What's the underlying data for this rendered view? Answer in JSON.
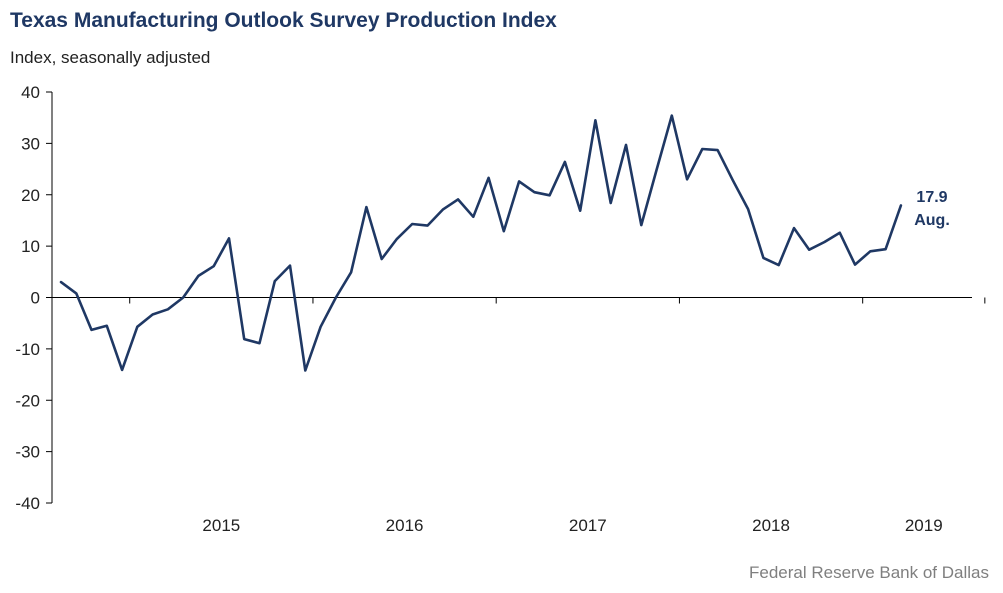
{
  "title": "Texas Manufacturing Outlook Survey Production Index",
  "subtitle": "Index, seasonally adjusted",
  "source": "Federal Reserve Bank of Dallas",
  "colors": {
    "line": "#1f3864",
    "title": "#1f3864",
    "axis": "#000000",
    "source": "#7f7f7f"
  },
  "chart_data": {
    "type": "line",
    "title": "Texas Manufacturing Outlook Survey Production Index",
    "ylabel": "Index, seasonally adjusted",
    "xlabel": "",
    "ylim": [
      -40,
      40
    ],
    "yticks": [
      40,
      30,
      20,
      10,
      0,
      -10,
      -20,
      -30,
      -40
    ],
    "x_tick_labels": [
      "2015",
      "2016",
      "2017",
      "2018",
      "2019"
    ],
    "x_start": "2014-08",
    "x_end": "2019-08",
    "grid": false,
    "series": [
      {
        "values": [
          3.0,
          0.8,
          -6.3,
          -5.5,
          -14.1,
          -5.7,
          -3.3,
          -2.3,
          0.0,
          4.2,
          6.1,
          11.5,
          -8.1,
          -8.9,
          3.2,
          6.2,
          -14.2,
          -5.7,
          0.0,
          4.9,
          17.6,
          7.5,
          11.4,
          14.3,
          14.0,
          17.1,
          19.1,
          15.7,
          23.3,
          12.9,
          22.6,
          20.5,
          19.9,
          26.4,
          16.9,
          34.5,
          18.4,
          29.7,
          14.1,
          24.8,
          35.4,
          23.0,
          28.9,
          28.7,
          22.8,
          17.2,
          7.7,
          6.3,
          13.5,
          9.3,
          10.8,
          12.6,
          6.4,
          9.0,
          9.4,
          17.9
        ]
      }
    ],
    "annotation": {
      "value": "17.9",
      "label": "Aug."
    }
  }
}
